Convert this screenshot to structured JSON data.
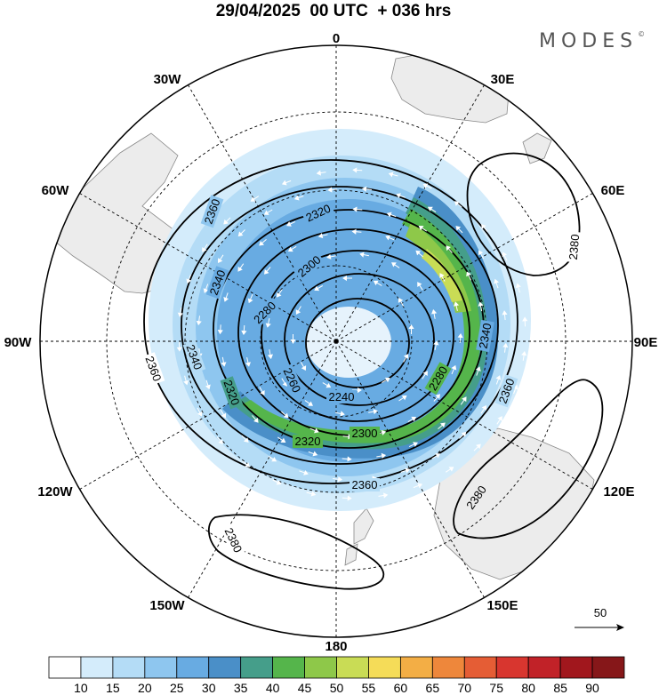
{
  "title": "29/04/2025  00 UTC  + 036 hrs",
  "brand": {
    "name": "MODES",
    "mark": "©"
  },
  "longitude_labels": [
    "0",
    "30E",
    "60E",
    "90E",
    "120E",
    "150E",
    "180",
    "150W",
    "120W",
    "90W",
    "60W",
    "30W"
  ],
  "contour_labels": [
    "2240",
    "2260",
    "2280",
    "2300",
    "2320",
    "2340",
    "2360",
    "2380"
  ],
  "reference_vector": {
    "value": "50"
  },
  "colorbar": {
    "tick_labels": [
      "10",
      "15",
      "20",
      "25",
      "30",
      "35",
      "40",
      "45",
      "50",
      "55",
      "60",
      "65",
      "70",
      "75",
      "80",
      "85",
      "90"
    ],
    "colors": [
      "#ffffff",
      "#d4ecfb",
      "#b4dcf6",
      "#8ec6ef",
      "#68abe2",
      "#4a8fc8",
      "#459e8a",
      "#55b54b",
      "#8ec849",
      "#c9dc55",
      "#f5dc58",
      "#f3ae45",
      "#ee873b",
      "#e55d35",
      "#d8362f",
      "#c12228",
      "#a1171d",
      "#861719"
    ]
  },
  "colors": {
    "land": "#ececec",
    "coast": "#888888",
    "contour": "#000000",
    "grid": "#000000"
  },
  "icons": {
    "wind_vector": "arrow-icon"
  }
}
